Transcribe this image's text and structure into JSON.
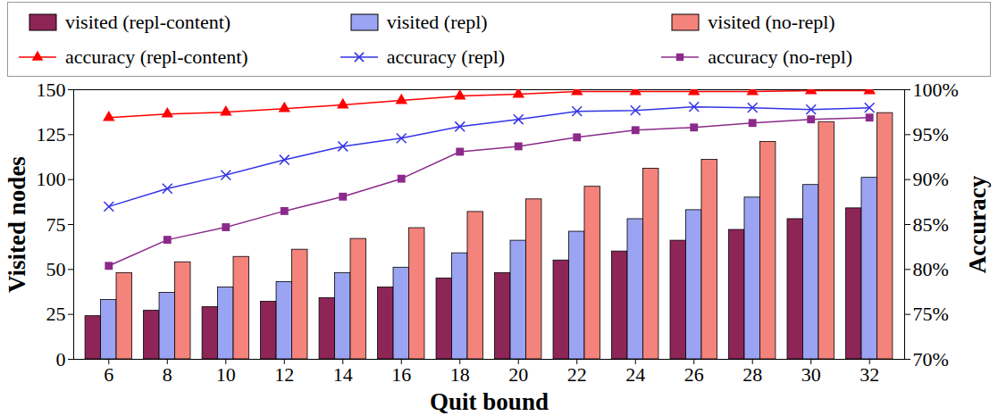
{
  "chart_data": {
    "type": "bar",
    "x_label": "Quit bound",
    "y_label": "Visited nodes",
    "y2_label": "Accuracy",
    "categories": [
      6,
      8,
      10,
      12,
      14,
      16,
      18,
      20,
      22,
      24,
      26,
      28,
      30,
      32
    ],
    "ylim": [
      0,
      150
    ],
    "yticks": [
      0,
      25,
      50,
      75,
      100,
      125,
      150
    ],
    "y2lim": [
      70,
      100
    ],
    "y2ticks": [
      {
        "value": 70,
        "label": "70%"
      },
      {
        "value": 75,
        "label": "75%"
      },
      {
        "value": 80,
        "label": "80%"
      },
      {
        "value": 85,
        "label": "85%"
      },
      {
        "value": 90,
        "label": "90%"
      },
      {
        "value": 95,
        "label": "95%"
      },
      {
        "value": 100,
        "label": "100%"
      }
    ],
    "legend": "top",
    "series": [
      {
        "name": "visited  (repl-content)",
        "type": "bar",
        "color": "#8e2557",
        "values": [
          24,
          27,
          29,
          32,
          34,
          40,
          45,
          48,
          55,
          60,
          66,
          72,
          78,
          84
        ]
      },
      {
        "name": "visited  (repl)",
        "type": "bar",
        "color": "#9aa4f2",
        "values": [
          33,
          37,
          40,
          43,
          48,
          51,
          59,
          66,
          71,
          78,
          83,
          90,
          97,
          101
        ]
      },
      {
        "name": "visited  (no-repl)",
        "type": "bar",
        "color": "#f4837c",
        "values": [
          48,
          54,
          57,
          61,
          67,
          73,
          82,
          89,
          96,
          106,
          111,
          121,
          132,
          137
        ]
      },
      {
        "name": "accuracy  (repl-content)",
        "type": "line",
        "axis": "y2",
        "marker": "triangle",
        "color": "#ff0000",
        "values": [
          96.9,
          97.3,
          97.5,
          97.9,
          98.3,
          98.8,
          99.3,
          99.5,
          99.8,
          99.8,
          99.8,
          99.8,
          99.9,
          99.9
        ]
      },
      {
        "name": "accuracy  (repl)",
        "type": "line",
        "axis": "y2",
        "marker": "x",
        "color": "#3333e6",
        "values": [
          87.0,
          89.0,
          90.5,
          92.2,
          93.7,
          94.6,
          95.9,
          96.7,
          97.6,
          97.7,
          98.1,
          98.0,
          97.8,
          98.0
        ]
      },
      {
        "name": "accuracy  (no-repl)",
        "type": "line",
        "axis": "y2",
        "marker": "square",
        "color": "#8b2a8b",
        "values": [
          80.4,
          83.3,
          84.7,
          86.5,
          88.1,
          90.1,
          93.1,
          93.7,
          94.7,
          95.5,
          95.8,
          96.3,
          96.7,
          96.9
        ]
      }
    ]
  }
}
